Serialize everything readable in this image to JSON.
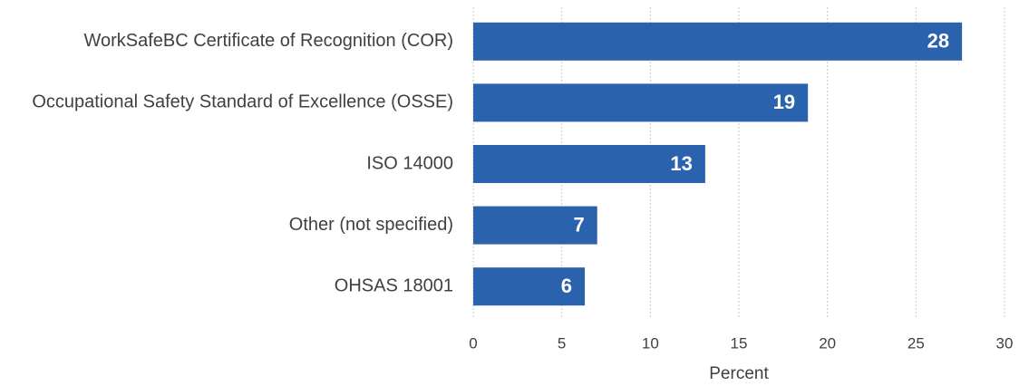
{
  "chart_data": {
    "type": "bar",
    "orientation": "horizontal",
    "categories": [
      "WorkSafeBC Certificate of Recognition (COR)",
      "Occupational Safety Standard of Excellence (OSSE)",
      "ISO 14000",
      "Other (not specified)",
      "OHSAS 18001"
    ],
    "values": [
      27.6,
      18.9,
      13.1,
      7.0,
      6.3
    ],
    "value_labels": [
      "28",
      "19",
      "13",
      "7",
      "6"
    ],
    "color": "#2a62ad",
    "x_label": "Percent",
    "xlim": [
      0,
      30
    ],
    "xticks": [
      0,
      5,
      10,
      15,
      20,
      25,
      30
    ],
    "grid": true
  }
}
